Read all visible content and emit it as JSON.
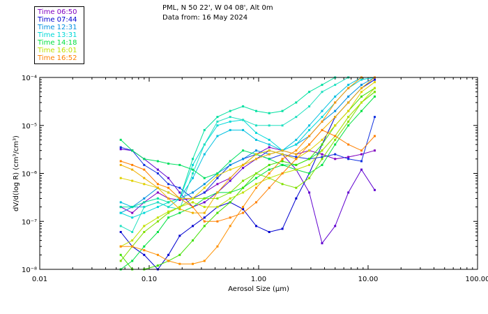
{
  "header": {
    "line1": "PML, N 50 22', W 04 08', Alt 0m",
    "line2": "Data from: 16 May 2024"
  },
  "legend": [
    {
      "label": "Time 06:50",
      "color": "#8000c0"
    },
    {
      "label": "Time 07:44",
      "color": "#0000d0"
    },
    {
      "label": "Time 12:31",
      "color": "#0090e0"
    },
    {
      "label": "Time 13:31",
      "color": "#00d8d8"
    },
    {
      "label": "Time 14:18",
      "color": "#00e040"
    },
    {
      "label": "Time 16:01",
      "color": "#c0e000"
    },
    {
      "label": "Time 16:52",
      "color": "#ff8000"
    }
  ],
  "chart_data": {
    "type": "line",
    "xscale": "log",
    "yscale": "log",
    "xlabel": "Aerosol Size (µm)",
    "ylabel": "dV/d(log R) (cm³/cm³)",
    "xlim": [
      0.01,
      100
    ],
    "ylim": [
      1e-08,
      0.0001
    ],
    "xticks": [
      {
        "v": 0.01,
        "label": "0.01"
      },
      {
        "v": 0.1,
        "label": "0.10"
      },
      {
        "v": 1,
        "label": "1.00"
      },
      {
        "v": 10,
        "label": "10.00"
      },
      {
        "v": 100,
        "label": "100.00"
      }
    ],
    "yticks": [
      {
        "v": 1e-08,
        "label": "10⁻⁸"
      },
      {
        "v": 1e-07,
        "label": "10⁻⁷"
      },
      {
        "v": 1e-06,
        "label": "10⁻⁶"
      },
      {
        "v": 1e-05,
        "label": "10⁻⁵"
      },
      {
        "v": 0.0001,
        "label": "10⁻⁴"
      }
    ],
    "x": [
      0.055,
      0.07,
      0.09,
      0.12,
      0.15,
      0.19,
      0.25,
      0.32,
      0.42,
      0.55,
      0.72,
      0.95,
      1.25,
      1.65,
      2.2,
      2.9,
      3.8,
      5.0,
      6.6,
      8.7,
      11.5
    ],
    "series": [
      {
        "color": "#8000c0",
        "values": [
          2e-07,
          1.5e-07,
          2.5e-07,
          4e-07,
          3e-07,
          2.8e-07,
          3e-07,
          4e-07,
          6e-07,
          8e-07,
          1.5e-06,
          2.5e-06,
          3.5e-06,
          3e-06,
          2.5e-06,
          3e-06,
          2.5e-06,
          2e-06,
          2.2e-06,
          2.5e-06,
          3e-06
        ]
      },
      {
        "color": "#6000d0",
        "values": [
          3.2e-06,
          3e-06,
          2e-06,
          1.2e-06,
          8e-07,
          4e-07,
          2e-07,
          2.5e-07,
          4e-07,
          7e-07,
          1.3e-06,
          2e-06,
          3e-06,
          2.5e-06,
          1.2e-06,
          4e-07,
          3.5e-08,
          8e-08,
          4e-07,
          1.2e-06,
          4.5e-07
        ]
      },
      {
        "color": "#0000d0",
        "values": [
          6e-08,
          3e-08,
          2e-08,
          1e-08,
          2e-08,
          5e-08,
          8e-08,
          1.2e-07,
          2e-07,
          2.5e-07,
          1.8e-07,
          8e-08,
          6e-08,
          7e-08,
          3e-07,
          1e-06,
          4e-06,
          1.5e-05,
          3e-05,
          6e-05,
          9e-05
        ]
      },
      {
        "color": "#1030e0",
        "values": [
          3.5e-06,
          3e-06,
          1.5e-06,
          1e-06,
          6e-07,
          5e-07,
          3e-07,
          4e-07,
          8e-07,
          1.5e-06,
          2e-06,
          2.5e-06,
          2e-06,
          2.5e-06,
          2.2e-06,
          2e-06,
          2.2e-06,
          2.5e-06,
          2e-06,
          1.8e-06,
          1.5e-05
        ]
      },
      {
        "color": "#0090e0",
        "values": [
          1.5e-07,
          2e-07,
          3e-07,
          5e-07,
          4e-07,
          3e-07,
          4e-07,
          6e-07,
          1e-06,
          1.5e-06,
          2e-06,
          3e-06,
          2.5e-06,
          3e-06,
          4e-06,
          6e-06,
          1.2e-05,
          2e-05,
          4e-05,
          7e-05,
          0.0001
        ]
      },
      {
        "color": "#00c0e0",
        "values": [
          2.5e-07,
          2e-07,
          2e-07,
          2.5e-07,
          2e-07,
          3e-07,
          8e-07,
          2.5e-06,
          6e-06,
          8e-06,
          8e-06,
          5e-06,
          4e-06,
          3e-06,
          5e-06,
          1e-05,
          2e-05,
          4e-05,
          7e-05,
          0.0001,
          0.0001
        ]
      },
      {
        "color": "#00d8d8",
        "values": [
          1.5e-07,
          1.2e-07,
          1.5e-07,
          2e-07,
          2.5e-07,
          3e-07,
          1.5e-06,
          4e-06,
          1e-05,
          1.2e-05,
          1.3e-05,
          7e-06,
          5e-06,
          3e-06,
          4e-06,
          8e-06,
          1.5e-05,
          3e-05,
          6e-05,
          9e-05,
          0.0001
        ]
      },
      {
        "color": "#20e0c0",
        "values": [
          8e-08,
          6e-08,
          2e-07,
          2.5e-07,
          2e-07,
          1.8e-07,
          1e-06,
          4e-06,
          1.2e-05,
          1.5e-05,
          1.3e-05,
          1e-05,
          1e-05,
          1e-05,
          1.5e-05,
          2.5e-05,
          5e-05,
          7e-05,
          0.0001,
          0.0001,
          0.0001
        ]
      },
      {
        "color": "#00e0a0",
        "values": [
          2e-07,
          2e-07,
          2.5e-07,
          3e-07,
          2.5e-07,
          3e-07,
          2e-06,
          8e-06,
          1.5e-05,
          2e-05,
          2.5e-05,
          2e-05,
          1.8e-05,
          2e-05,
          3e-05,
          5e-05,
          7e-05,
          0.0001,
          0.0001,
          0.0001,
          0.0001
        ]
      },
      {
        "color": "#00e060",
        "values": [
          5e-06,
          3e-06,
          2e-06,
          1.8e-06,
          1.6e-06,
          1.5e-06,
          1.2e-06,
          8e-07,
          1e-06,
          1.8e-06,
          3e-06,
          2.5e-06,
          2e-06,
          1.5e-06,
          1.5e-06,
          2e-06,
          3e-06,
          6e-06,
          1.5e-05,
          3e-05,
          5e-05
        ]
      },
      {
        "color": "#00e040",
        "values": [
          1e-08,
          1.5e-08,
          3e-08,
          6e-08,
          1.2e-07,
          1.5e-07,
          2e-07,
          3e-07,
          4e-07,
          4e-07,
          5e-07,
          8e-07,
          1.2e-06,
          1.5e-06,
          1.2e-06,
          1e-06,
          1.5e-06,
          4e-06,
          1e-05,
          2e-05,
          4e-05
        ]
      },
      {
        "color": "#40e000",
        "values": [
          2e-08,
          1e-08,
          1e-08,
          1.2e-08,
          1.5e-08,
          2e-08,
          4e-08,
          8e-08,
          1.5e-07,
          2.5e-07,
          5e-07,
          1e-06,
          1.5e-06,
          1.8e-06,
          1.5e-06,
          2e-06,
          4e-06,
          1e-05,
          2e-05,
          4e-05,
          6e-05
        ]
      },
      {
        "color": "#80e000",
        "values": [
          1.5e-08,
          3e-08,
          6e-08,
          1e-07,
          1.5e-07,
          2e-07,
          3e-07,
          3e-07,
          3e-07,
          4e-07,
          7e-07,
          1e-06,
          8e-07,
          6e-07,
          5e-07,
          8e-07,
          2e-06,
          5e-06,
          1.2e-05,
          3e-05,
          5e-05
        ]
      },
      {
        "color": "#c0e000",
        "values": [
          3e-08,
          4e-08,
          8e-08,
          1.2e-07,
          1.6e-07,
          2e-07,
          2.5e-07,
          2e-07,
          2e-07,
          3e-07,
          4e-07,
          6e-07,
          8e-07,
          1e-06,
          1.2e-06,
          1.5e-06,
          3e-06,
          6e-06,
          1.5e-05,
          3e-05,
          6e-05
        ]
      },
      {
        "color": "#e0d000",
        "values": [
          8e-07,
          7e-07,
          6e-07,
          5e-07,
          4e-07,
          3e-07,
          3e-07,
          5e-07,
          9e-07,
          1.2e-06,
          1.5e-06,
          2.5e-06,
          3e-06,
          2.5e-06,
          2e-06,
          3e-06,
          5e-06,
          1e-05,
          2e-05,
          5e-05,
          8e-05
        ]
      },
      {
        "color": "#f0b000",
        "values": [
          1.5e-06,
          1.2e-06,
          8e-07,
          5e-07,
          3e-07,
          1.8e-07,
          1.5e-07,
          1.5e-07,
          4e-07,
          8e-07,
          1.5e-06,
          2e-06,
          2.5e-06,
          3e-06,
          2.5e-06,
          4e-06,
          8e-06,
          1.5e-05,
          3e-05,
          6e-05,
          0.0001
        ]
      },
      {
        "color": "#ff9000",
        "values": [
          3e-08,
          3e-08,
          2.5e-08,
          2e-08,
          1.5e-08,
          1.3e-08,
          1.3e-08,
          1.5e-08,
          3e-08,
          8e-08,
          2e-07,
          5e-07,
          1e-06,
          2e-06,
          3e-06,
          6e-06,
          1.2e-05,
          3e-05,
          6e-05,
          0.0001,
          0.0001
        ]
      },
      {
        "color": "#ff8000",
        "values": [
          1.8e-06,
          1.5e-06,
          1.2e-06,
          6e-07,
          5e-07,
          3e-07,
          2e-07,
          1e-07,
          1e-07,
          1.2e-07,
          1.5e-07,
          2.5e-07,
          5e-07,
          1e-06,
          2e-06,
          4e-06,
          8e-06,
          6e-06,
          4e-06,
          3e-06,
          6e-06
        ]
      }
    ]
  }
}
